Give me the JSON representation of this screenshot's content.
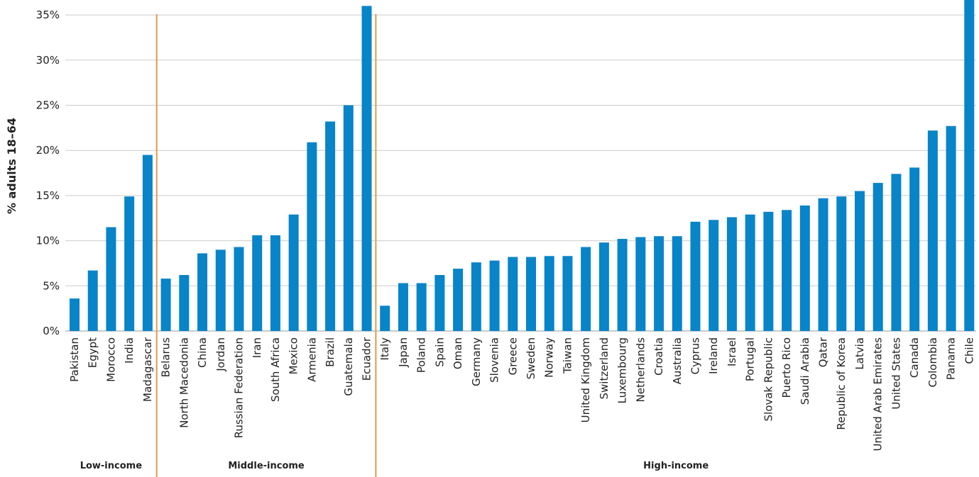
{
  "chart_data": {
    "type": "bar",
    "ylabel": "% adults 18–64",
    "ylim": [
      0,
      35
    ],
    "yticks": [
      "0%",
      "5%",
      "10%",
      "15%",
      "20%",
      "25%",
      "30%",
      "35%"
    ],
    "grid": true,
    "colors": {
      "bar": "#0884c8",
      "divider": "#e09a52",
      "grid": "#cccccc"
    },
    "groups": [
      {
        "name": "Low-income",
        "count": 5
      },
      {
        "name": "Middle-income",
        "count": 12
      },
      {
        "name": "High-income",
        "count": 33
      }
    ],
    "categories": [
      "Pakistan",
      "Egypt",
      "Morocco",
      "India",
      "Madagascar",
      "Belarus",
      "North Macedonia",
      "China",
      "Jordan",
      "Russian Federation",
      "Iran",
      "South Africa",
      "Mexico",
      "Armenia",
      "Brazil",
      "Guatemala",
      "Ecuador",
      "Italy",
      "Japan",
      "Poland",
      "Spain",
      "Oman",
      "Germany",
      "Slovenia",
      "Greece",
      "Sweden",
      "Norway",
      "Taiwan",
      "United Kingdom",
      "Switzerland",
      "Luxembourg",
      "Netherlands",
      "Croatia",
      "Australia",
      "Cyprus",
      "Ireland",
      "Israel",
      "Portugal",
      "Slovak Republic",
      "Puerto Rico",
      "Saudi Arabia",
      "Qatar",
      "Republic of Korea",
      "Latvia",
      "United Arab Emirates",
      "United States",
      "Canada",
      "Colombia",
      "Panama",
      "Chile"
    ],
    "values": [
      3.6,
      6.7,
      11.5,
      14.9,
      19.5,
      5.8,
      6.2,
      8.6,
      9.0,
      9.3,
      10.6,
      10.6,
      12.9,
      20.9,
      23.2,
      25.0,
      36.0,
      2.8,
      5.3,
      5.3,
      6.2,
      6.9,
      7.6,
      7.8,
      8.2,
      8.2,
      8.3,
      8.3,
      9.3,
      9.8,
      10.2,
      10.4,
      10.5,
      10.5,
      12.1,
      12.3,
      12.6,
      12.9,
      13.2,
      13.4,
      13.9,
      14.7,
      14.9,
      15.5,
      16.4,
      17.4,
      18.1,
      22.2,
      22.7,
      36.7
    ]
  }
}
